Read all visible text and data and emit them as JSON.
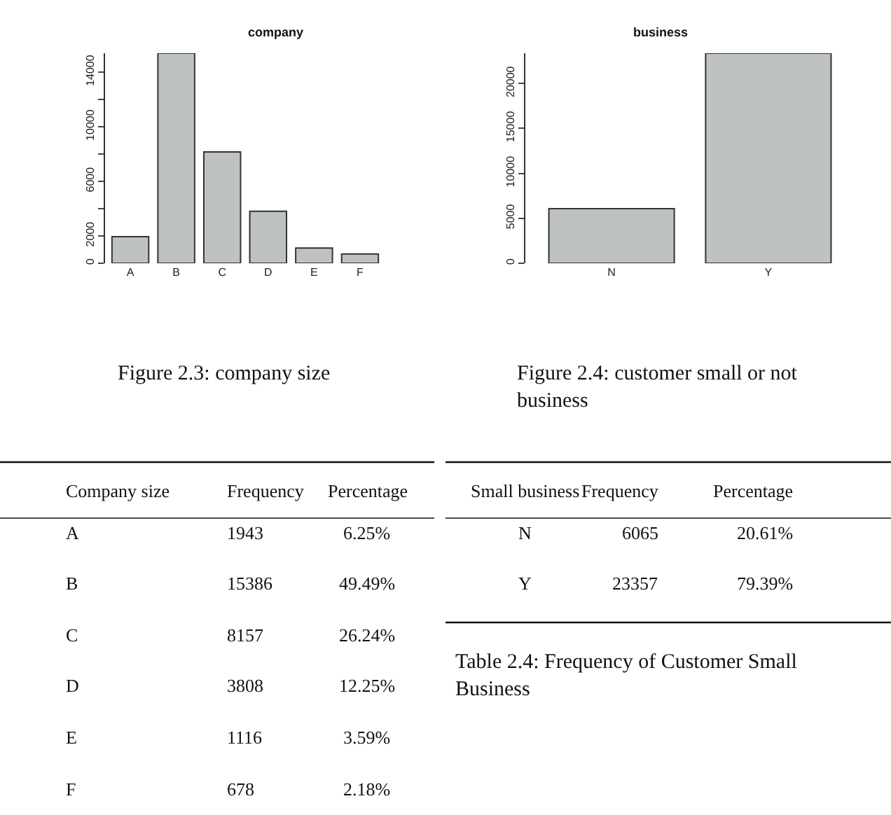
{
  "chart_data": [
    {
      "type": "bar",
      "title": "company",
      "categories": [
        "A",
        "B",
        "C",
        "D",
        "E",
        "F"
      ],
      "values": [
        1943,
        15386,
        8157,
        3808,
        1116,
        678
      ],
      "color": "#bec3c0",
      "ylim": [
        0,
        15386
      ],
      "yticks": [
        0,
        2000,
        {
          "value": 4000,
          "label": null
        },
        6000,
        {
          "value": 8000,
          "label": null
        },
        10000,
        {
          "value": 12000,
          "label": null
        },
        14000
      ],
      "annotations": [
        "Figure 2.3: company size",
        "Company size",
        "Frequency",
        "Percentage",
        "1943",
        "6.25%",
        "15386",
        "49.49%",
        "8157",
        "26.24%",
        "3808",
        "12.25%",
        "1116",
        "3.59%",
        "678",
        "2.18%"
      ]
    },
    {
      "type": "bar",
      "title": "business",
      "categories": [
        "N",
        "Y"
      ],
      "values": [
        6065,
        23357
      ],
      "color": "#bec3c0",
      "ylim": [
        0,
        23357
      ],
      "yticks": [
        0,
        5000,
        10000,
        15000,
        20000
      ],
      "annotations": [
        "Figure 2.4: customer small or not business",
        "Small business",
        "Frequency",
        "Percentage",
        "6065",
        "20.61%",
        "23357",
        "79.39%",
        "Table 2.4: Frequency of Customer Small Business"
      ]
    }
  ]
}
